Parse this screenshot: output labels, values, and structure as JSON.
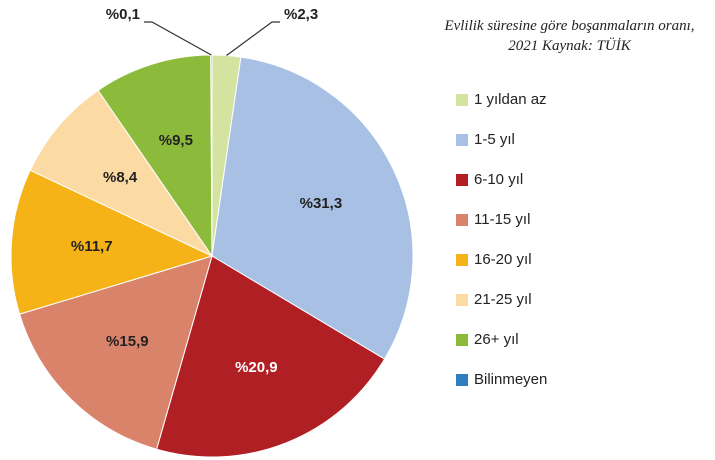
{
  "chart_data": {
    "type": "pie",
    "title": "Evlilik süresine göre boşanmaların oranı, 2021 Kaynak: TÜİK",
    "categories": [
      "1 yıldan az",
      "1-5 yıl",
      "6-10 yıl",
      "11-15 yıl",
      "16-20 yıl",
      "21-25 yıl",
      "26+ yıl",
      "Bilinmeyen"
    ],
    "values": [
      2.3,
      31.3,
      20.9,
      15.9,
      11.7,
      8.4,
      9.5,
      0.1
    ],
    "value_labels": [
      "%2,3",
      "%31,3",
      "%20,9",
      "%15,9",
      "%11,7",
      "%8,4",
      "%9,5",
      "%0,1"
    ],
    "colors": [
      "#d5e3a0",
      "#a7c0e4",
      "#b01f24",
      "#d9836b",
      "#f5b317",
      "#fbdaa3",
      "#8cbb3b",
      "#2d7fc1"
    ],
    "legend": "right"
  }
}
